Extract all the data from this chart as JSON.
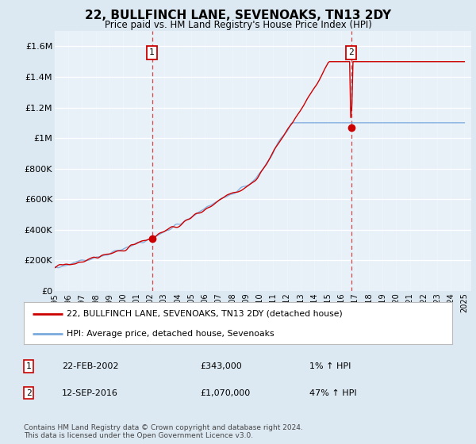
{
  "title": "22, BULLFINCH LANE, SEVENOAKS, TN13 2DY",
  "subtitle": "Price paid vs. HM Land Registry's House Price Index (HPI)",
  "background_color": "#dde9f2",
  "plot_bg_color": "#e8f0f8",
  "grid_color": "#ffffff",
  "red_line_color": "#cc0000",
  "blue_line_color": "#7aaadd",
  "sale1_date": 2002.12,
  "sale1_price": 343000,
  "sale2_date": 2016.71,
  "sale2_price": 1070000,
  "ylim_min": 0,
  "ylim_max": 1700000,
  "xlim_min": 1995,
  "xlim_max": 2025.5,
  "yticks": [
    0,
    200000,
    400000,
    600000,
    800000,
    1000000,
    1200000,
    1400000,
    1600000
  ],
  "ytick_labels": [
    "£0",
    "£200K",
    "£400K",
    "£600K",
    "£800K",
    "£1M",
    "£1.2M",
    "£1.4M",
    "£1.6M"
  ],
  "xticks": [
    1995,
    1996,
    1997,
    1998,
    1999,
    2000,
    2001,
    2002,
    2003,
    2004,
    2005,
    2006,
    2007,
    2008,
    2009,
    2010,
    2011,
    2012,
    2013,
    2014,
    2015,
    2016,
    2017,
    2018,
    2019,
    2020,
    2021,
    2022,
    2023,
    2024,
    2025
  ],
  "legend_label1": "22, BULLFINCH LANE, SEVENOAKS, TN13 2DY (detached house)",
  "legend_label2": "HPI: Average price, detached house, Sevenoaks",
  "note1_num": "1",
  "note1_date": "22-FEB-2002",
  "note1_price": "£343,000",
  "note1_hpi": "1% ↑ HPI",
  "note2_num": "2",
  "note2_date": "12-SEP-2016",
  "note2_price": "£1,070,000",
  "note2_hpi": "47% ↑ HPI",
  "footer": "Contains HM Land Registry data © Crown copyright and database right 2024.\nThis data is licensed under the Open Government Licence v3.0."
}
